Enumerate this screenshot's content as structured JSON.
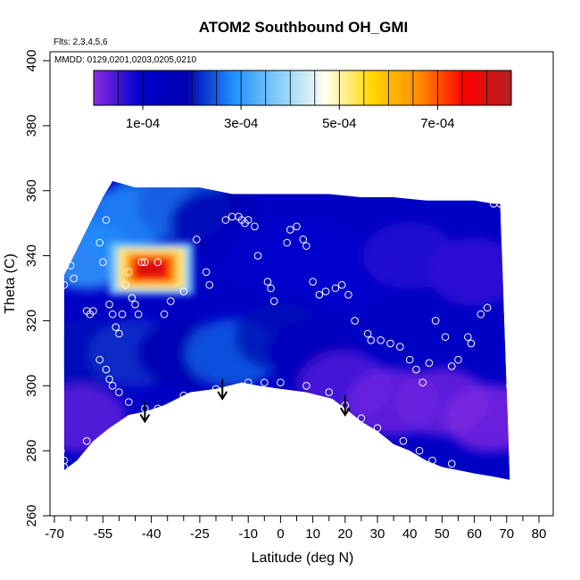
{
  "chart_data": {
    "type": "heatmap",
    "title": "ATOM2 Southbound OH_GMI",
    "annotations": {
      "flights": "Flts: 2,3,4,5,6",
      "dates": "MMDD: 0129,0201,0203,0205,0210"
    },
    "xlabel": "Latitude (deg N)",
    "ylabel": "Theta (C)",
    "xlim": [
      -70,
      80
    ],
    "ylim": [
      260,
      400
    ],
    "x_ticks": [
      "-70",
      "-55",
      "-40",
      "-25",
      "-10",
      "0",
      "10",
      "20",
      "30",
      "40",
      "50",
      "60",
      "70",
      "80"
    ],
    "x_tick_values": [
      -70,
      -55,
      -40,
      -25,
      -10,
      0,
      10,
      20,
      30,
      40,
      50,
      60,
      70,
      80
    ],
    "x_minor_ticks": [
      -65,
      -60,
      -50,
      -45,
      -35,
      -30,
      -20,
      -15,
      -5,
      5,
      15,
      25,
      35,
      45,
      55,
      65,
      75
    ],
    "y_ticks": [
      "260",
      "280",
      "300",
      "320",
      "340",
      "360",
      "380",
      "400"
    ],
    "y_tick_values": [
      260,
      280,
      300,
      320,
      340,
      360,
      380,
      400
    ],
    "colorbar": {
      "min": 0.0,
      "max": 0.00085,
      "tick_labels": [
        "1e-04",
        "3e-04",
        "5e-04",
        "7e-04"
      ],
      "tick_values": [
        0.0001,
        0.0003,
        0.0005,
        0.0007
      ],
      "colors": [
        "#8a2be2",
        "#0000cd",
        "#0000b0",
        "#1e90ff",
        "#87cefa",
        "#fffff0",
        "#ffd700",
        "#ff8c00",
        "#ff0000",
        "#b22222"
      ]
    },
    "grid": false,
    "surface_boundary": [
      [
        -67,
        274
      ],
      [
        -63,
        277
      ],
      [
        -58,
        283
      ],
      [
        -53,
        287
      ],
      [
        -47,
        291
      ],
      [
        -42,
        292
      ],
      [
        -36,
        294
      ],
      [
        -28,
        298
      ],
      [
        -20,
        299
      ],
      [
        -12,
        301
      ],
      [
        -7,
        300
      ],
      [
        0,
        299
      ],
      [
        8,
        298
      ],
      [
        16,
        296
      ],
      [
        20,
        293
      ],
      [
        25,
        289
      ],
      [
        30,
        286
      ],
      [
        35,
        282
      ],
      [
        40,
        280
      ],
      [
        45,
        277
      ],
      [
        50,
        275
      ],
      [
        60,
        273
      ],
      [
        66,
        272
      ],
      [
        71,
        271
      ]
    ],
    "top_boundary": [
      [
        -67,
        334
      ],
      [
        -64,
        340
      ],
      [
        -60,
        348
      ],
      [
        -55,
        358
      ],
      [
        -52,
        363
      ],
      [
        -45,
        361
      ],
      [
        -35,
        361
      ],
      [
        -25,
        361
      ],
      [
        -15,
        359
      ],
      [
        -5,
        359
      ],
      [
        5,
        359
      ],
      [
        15,
        359
      ],
      [
        25,
        358
      ],
      [
        35,
        358
      ],
      [
        45,
        357
      ],
      [
        55,
        357
      ],
      [
        60,
        357
      ],
      [
        66,
        356
      ],
      [
        68,
        356
      ]
    ],
    "background_field": [
      {
        "lon": -60,
        "theta": 340,
        "value": 0.0003
      },
      {
        "lon": -50,
        "theta": 350,
        "value": 0.00028
      },
      {
        "lon": -40,
        "theta": 355,
        "value": 0.00027
      },
      {
        "lon": -30,
        "theta": 355,
        "value": 0.00025
      },
      {
        "lon": -20,
        "theta": 350,
        "value": 0.00018
      },
      {
        "lon": -10,
        "theta": 340,
        "value": 0.00012
      },
      {
        "lon": 0,
        "theta": 340,
        "value": 0.0001
      },
      {
        "lon": 10,
        "theta": 340,
        "value": 9e-05
      },
      {
        "lon": 20,
        "theta": 335,
        "value": 9e-05
      },
      {
        "lon": 40,
        "theta": 340,
        "value": 7e-05
      },
      {
        "lon": 60,
        "theta": 335,
        "value": 6e-05
      },
      {
        "lon": -60,
        "theta": 310,
        "value": 0.0002
      },
      {
        "lon": -45,
        "theta": 310,
        "value": 0.00022
      },
      {
        "lon": -30,
        "theta": 310,
        "value": 0.00018
      },
      {
        "lon": -15,
        "theta": 310,
        "value": 0.00025
      },
      {
        "lon": 0,
        "theta": 315,
        "value": 0.0002
      },
      {
        "lon": 10,
        "theta": 310,
        "value": 0.00015
      },
      {
        "lon": 20,
        "theta": 300,
        "value": 4e-05
      },
      {
        "lon": 35,
        "theta": 295,
        "value": 2e-05
      },
      {
        "lon": 50,
        "theta": 295,
        "value": 2e-05
      },
      {
        "lon": 65,
        "theta": 290,
        "value": 1e-05
      },
      {
        "lon": -62,
        "theta": 290,
        "value": 3e-05
      }
    ],
    "hotspot": {
      "lon": -40,
      "theta": 336,
      "value": 0.0008,
      "lon_halfwidth": 13,
      "theta_halfwidth": 8
    },
    "observations": [
      [
        -67,
        331
      ],
      [
        -65,
        337
      ],
      [
        -64,
        333
      ],
      [
        -60,
        323
      ],
      [
        -59,
        322
      ],
      [
        -58,
        323
      ],
      [
        -56,
        344
      ],
      [
        -55,
        338
      ],
      [
        -54,
        351
      ],
      [
        -53,
        325
      ],
      [
        -52,
        322
      ],
      [
        -51,
        318
      ],
      [
        -50,
        316
      ],
      [
        -49,
        322
      ],
      [
        -48,
        331
      ],
      [
        -47,
        335
      ],
      [
        -46,
        327
      ],
      [
        -45,
        325
      ],
      [
        -44,
        322
      ],
      [
        -43,
        338
      ],
      [
        -42,
        338
      ],
      [
        -38,
        338
      ],
      [
        -36,
        322
      ],
      [
        -34,
        326
      ],
      [
        -30,
        329
      ],
      [
        -26,
        345
      ],
      [
        -23,
        335
      ],
      [
        -22,
        331
      ],
      [
        -17,
        351
      ],
      [
        -15,
        352
      ],
      [
        -13,
        352
      ],
      [
        -12,
        351
      ],
      [
        -11,
        350
      ],
      [
        -10,
        351
      ],
      [
        -8,
        349
      ],
      [
        -7,
        340
      ],
      [
        -4,
        332
      ],
      [
        -3,
        330
      ],
      [
        -2,
        326
      ],
      [
        2,
        344
      ],
      [
        3,
        348
      ],
      [
        5,
        349
      ],
      [
        7,
        345
      ],
      [
        8,
        343
      ],
      [
        10,
        332
      ],
      [
        12,
        328
      ],
      [
        14,
        329
      ],
      [
        17,
        330
      ],
      [
        19,
        331
      ],
      [
        21,
        328
      ],
      [
        23,
        320
      ],
      [
        27,
        316
      ],
      [
        28,
        314
      ],
      [
        31,
        314
      ],
      [
        34,
        313
      ],
      [
        37,
        312
      ],
      [
        40,
        308
      ],
      [
        42,
        305
      ],
      [
        44,
        301
      ],
      [
        46,
        307
      ],
      [
        48,
        320
      ],
      [
        51,
        315
      ],
      [
        53,
        306
      ],
      [
        55,
        308
      ],
      [
        58,
        315
      ],
      [
        59,
        313
      ],
      [
        62,
        322
      ],
      [
        64,
        324
      ],
      [
        -56,
        308
      ],
      [
        -54,
        305
      ],
      [
        -53,
        302
      ],
      [
        -52,
        300
      ],
      [
        -50,
        298
      ],
      [
        -47,
        295
      ],
      [
        -42,
        293
      ],
      [
        -38,
        293
      ],
      [
        -30,
        297
      ],
      [
        -20,
        299
      ],
      [
        -10,
        301
      ],
      [
        -5,
        301
      ],
      [
        0,
        301
      ],
      [
        8,
        300
      ],
      [
        15,
        298
      ],
      [
        20,
        294
      ],
      [
        25,
        290
      ],
      [
        30,
        287
      ],
      [
        38,
        283
      ],
      [
        43,
        280
      ],
      [
        47,
        277
      ],
      [
        53,
        276
      ],
      [
        -60,
        283
      ],
      [
        -57,
        280
      ],
      [
        -55,
        279
      ],
      [
        -52,
        281
      ],
      [
        -68,
        280
      ],
      [
        -67,
        277
      ],
      [
        -67,
        275
      ],
      [
        66,
        356
      ],
      [
        68,
        356
      ],
      [
        71,
        300
      ]
    ],
    "arrows": [
      {
        "lon": -42,
        "theta_tip": 289
      },
      {
        "lon": -18,
        "theta_tip": 296
      },
      {
        "lon": 20,
        "theta_tip": 291
      }
    ]
  }
}
